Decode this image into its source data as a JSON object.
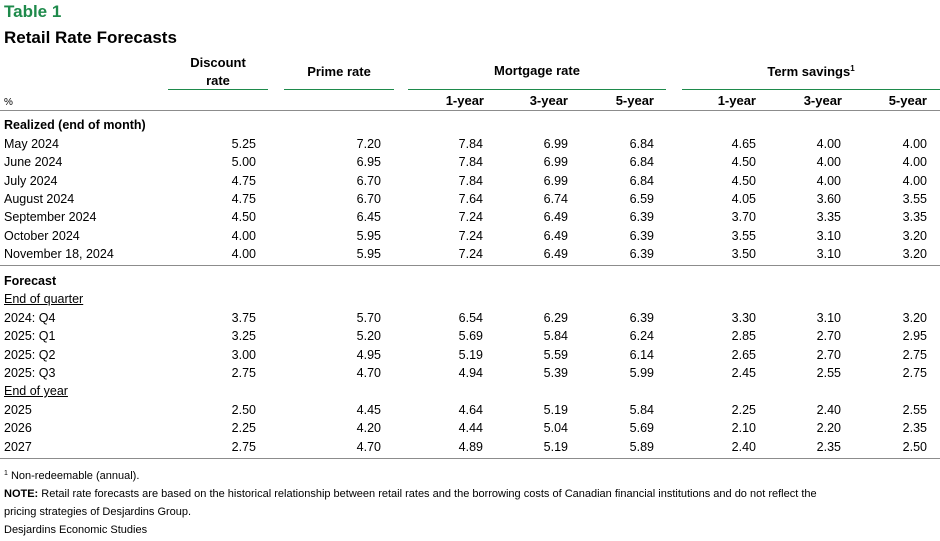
{
  "table_label": "Table 1",
  "title": "Retail Rate Forecasts",
  "headers": {
    "discount_line1": "Discount",
    "discount_line2": "rate",
    "prime": "Prime rate",
    "mortgage": "Mortgage rate",
    "term": "Term savings",
    "term_sup": "1",
    "unit": "%",
    "sub": [
      "1-year",
      "3-year",
      "5-year",
      "1-year",
      "3-year",
      "5-year"
    ]
  },
  "realized": {
    "title": "Realized (end of month)",
    "rows": [
      {
        "label": "May 2024",
        "values": [
          "5.25",
          "7.20",
          "7.84",
          "6.99",
          "6.84",
          "4.65",
          "4.00",
          "4.00"
        ]
      },
      {
        "label": "June 2024",
        "values": [
          "5.00",
          "6.95",
          "7.84",
          "6.99",
          "6.84",
          "4.50",
          "4.00",
          "4.00"
        ]
      },
      {
        "label": "July 2024",
        "values": [
          "4.75",
          "6.70",
          "7.84",
          "6.99",
          "6.84",
          "4.50",
          "4.00",
          "4.00"
        ]
      },
      {
        "label": "August 2024",
        "values": [
          "4.75",
          "6.70",
          "7.64",
          "6.74",
          "6.59",
          "4.05",
          "3.60",
          "3.55"
        ]
      },
      {
        "label": "September 2024",
        "values": [
          "4.50",
          "6.45",
          "7.24",
          "6.49",
          "6.39",
          "3.70",
          "3.35",
          "3.35"
        ]
      },
      {
        "label": "October 2024",
        "values": [
          "4.00",
          "5.95",
          "7.24",
          "6.49",
          "6.39",
          "3.55",
          "3.10",
          "3.20"
        ]
      },
      {
        "label": "November 18, 2024",
        "values": [
          "4.00",
          "5.95",
          "7.24",
          "6.49",
          "6.39",
          "3.50",
          "3.10",
          "3.20"
        ]
      }
    ]
  },
  "forecast": {
    "title": "Forecast",
    "quarter_title": "End of quarter",
    "quarter_rows": [
      {
        "label": "2024: Q4",
        "values": [
          "3.75",
          "5.70",
          "6.54",
          "6.29",
          "6.39",
          "3.30",
          "3.10",
          "3.20"
        ]
      },
      {
        "label": "2025: Q1",
        "values": [
          "3.25",
          "5.20",
          "5.69",
          "5.84",
          "6.24",
          "2.85",
          "2.70",
          "2.95"
        ]
      },
      {
        "label": "2025: Q2",
        "values": [
          "3.00",
          "4.95",
          "5.19",
          "5.59",
          "6.14",
          "2.65",
          "2.70",
          "2.75"
        ]
      },
      {
        "label": "2025: Q3",
        "values": [
          "2.75",
          "4.70",
          "4.94",
          "5.39",
          "5.99",
          "2.45",
          "2.55",
          "2.75"
        ]
      }
    ],
    "year_title": "End of year",
    "year_rows": [
      {
        "label": "2025",
        "values": [
          "2.50",
          "4.45",
          "4.64",
          "5.19",
          "5.84",
          "2.25",
          "2.40",
          "2.55"
        ]
      },
      {
        "label": "2026",
        "values": [
          "2.25",
          "4.20",
          "4.44",
          "5.04",
          "5.69",
          "2.10",
          "2.20",
          "2.35"
        ]
      },
      {
        "label": "2027",
        "values": [
          "2.75",
          "4.70",
          "4.89",
          "5.19",
          "5.89",
          "2.40",
          "2.35",
          "2.50"
        ]
      }
    ]
  },
  "footnotes": {
    "note1_sup": "1",
    "note1": " Non-redeemable (annual).",
    "note_label": "NOTE:",
    "note_line1": " Retail rate forecasts are based on the historical relationship between retail rates and the borrowing costs of Canadian financial institutions and do not reflect the",
    "note_line2": "pricing strategies of Desjardins Group.",
    "source": "Desjardins Economic Studies"
  },
  "colors": {
    "accent": "#1e8a4b",
    "divider": "#8c8c8c"
  }
}
